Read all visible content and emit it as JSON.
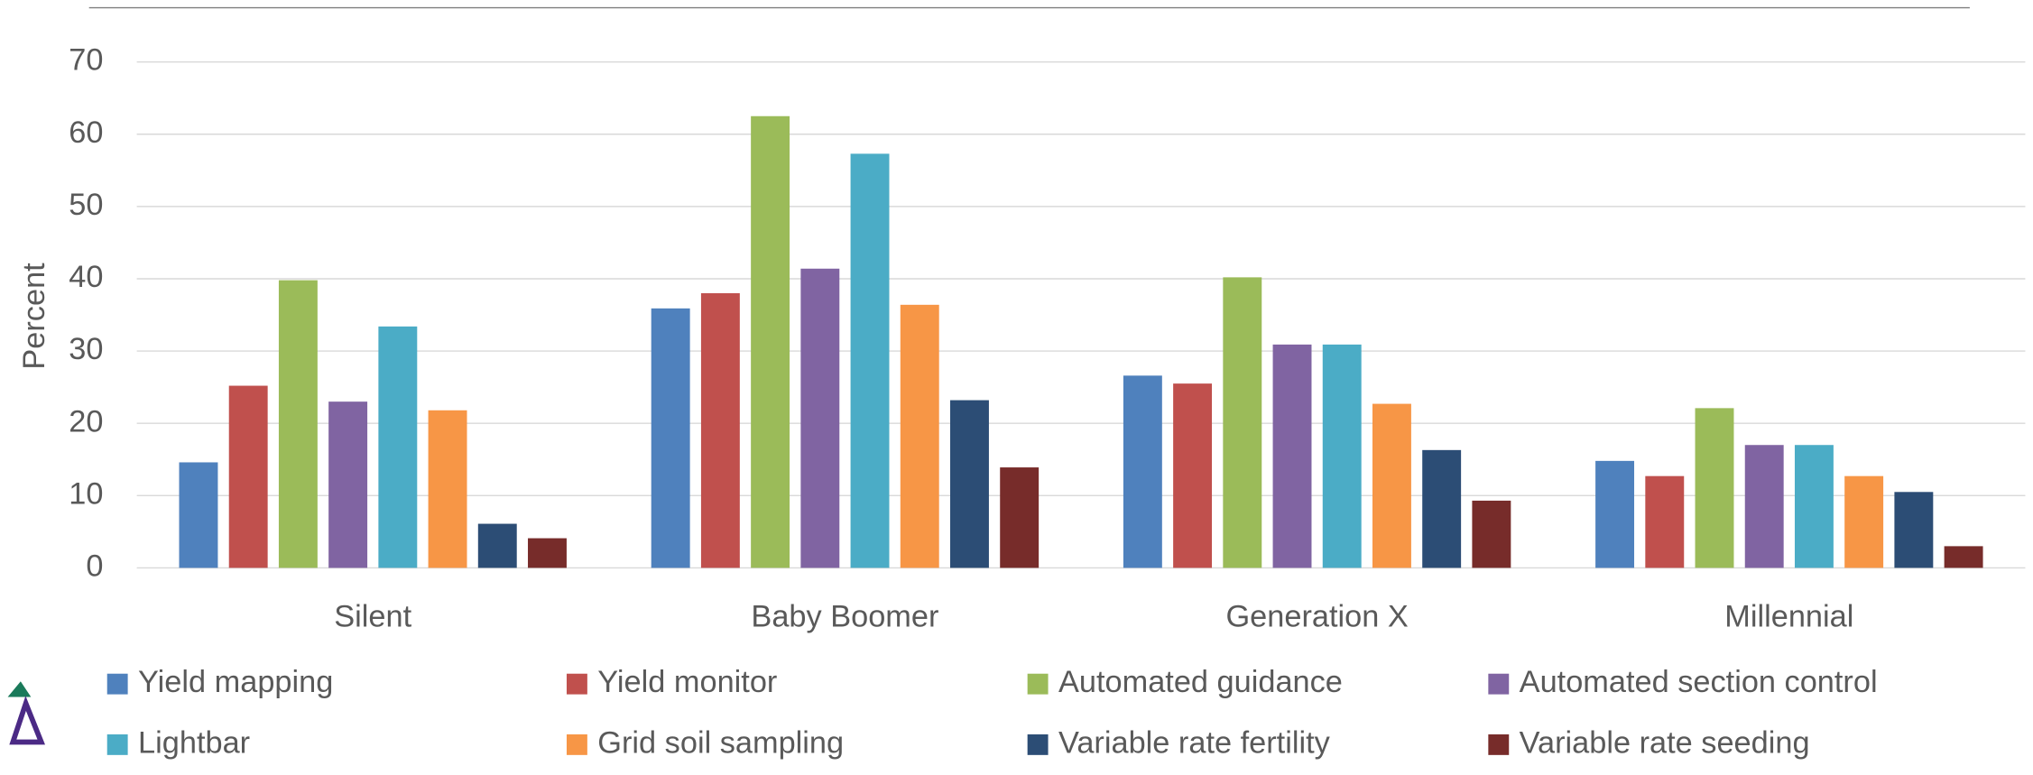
{
  "chart_data": {
    "type": "bar",
    "y_label": "Percent",
    "categories": [
      "Silent",
      "Baby Boomer",
      "Generation X",
      "Millennial"
    ],
    "series": [
      {
        "name": "Yield mapping",
        "color": "#4f81bd",
        "values": [
          14.6,
          35.9,
          26.6,
          14.8
        ]
      },
      {
        "name": "Yield monitor",
        "color": "#c0504d",
        "values": [
          25.2,
          38.0,
          25.5,
          12.7
        ]
      },
      {
        "name": "Automated guidance",
        "color": "#9bbb59",
        "values": [
          39.8,
          62.5,
          40.2,
          22.1
        ]
      },
      {
        "name": "Automated section control",
        "color": "#8064a2",
        "values": [
          23.0,
          41.4,
          30.9,
          17.0
        ]
      },
      {
        "name": "Lightbar",
        "color": "#4bacc6",
        "values": [
          33.4,
          57.3,
          30.9,
          17.0
        ]
      },
      {
        "name": "Grid soil sampling",
        "color": "#f79646",
        "values": [
          21.8,
          36.4,
          22.7,
          12.7
        ]
      },
      {
        "name": "Variable rate fertility",
        "color": "#2c4d75",
        "values": [
          6.1,
          23.2,
          16.3,
          10.5
        ]
      },
      {
        "name": "Variable rate seeding",
        "color": "#772c2a",
        "values": [
          4.1,
          13.9,
          9.3,
          3.0
        ]
      }
    ],
    "ylim": [
      0,
      70
    ],
    "yticks": [
      0,
      10,
      20,
      30,
      40,
      50,
      60,
      70
    ],
    "grid": true,
    "legend": "bottom"
  }
}
